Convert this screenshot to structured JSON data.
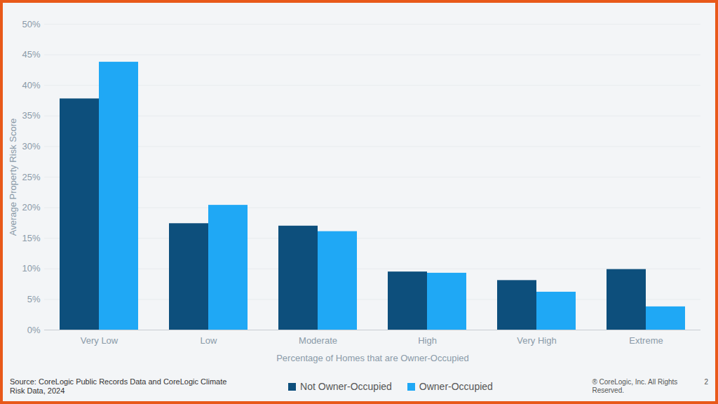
{
  "chart_data": {
    "type": "bar",
    "x_label": "Percentage of Homes that are Owner-Occupied",
    "y_label": "Average Property Risk Score",
    "categories": [
      "Very Low",
      "Low",
      "Moderate",
      "High",
      "Very High",
      "Extreme"
    ],
    "series": [
      {
        "name": "Not Owner-Occupied",
        "color": "#0d4f7c",
        "values": [
          37.8,
          17.4,
          17.0,
          9.5,
          8.1,
          9.9
        ]
      },
      {
        "name": "Owner-Occupied",
        "color": "#1fa8f5",
        "values": [
          43.8,
          20.4,
          16.1,
          9.3,
          6.2,
          3.8
        ]
      }
    ],
    "ylim": [
      0,
      50
    ],
    "yticks": [
      {
        "value": 0,
        "label": "0%"
      },
      {
        "value": 5,
        "label": "5%"
      },
      {
        "value": 10,
        "label": "10%"
      },
      {
        "value": 15,
        "label": "15%"
      },
      {
        "value": 20,
        "label": "20%"
      },
      {
        "value": 25,
        "label": "25%"
      },
      {
        "value": 30,
        "label": "30%"
      },
      {
        "value": 35,
        "label": "35%"
      },
      {
        "value": 40,
        "label": "40%"
      },
      {
        "value": 45,
        "label": "45%"
      },
      {
        "value": 50,
        "label": "50%"
      }
    ],
    "grid": true,
    "legend": "bottom",
    "source": "Source: CoreLogic Public Records Data and CoreLogic Climate Risk Data, 2024",
    "copyright": "® CoreLogic, Inc. All Rights Reserved.",
    "page_number": "2"
  }
}
